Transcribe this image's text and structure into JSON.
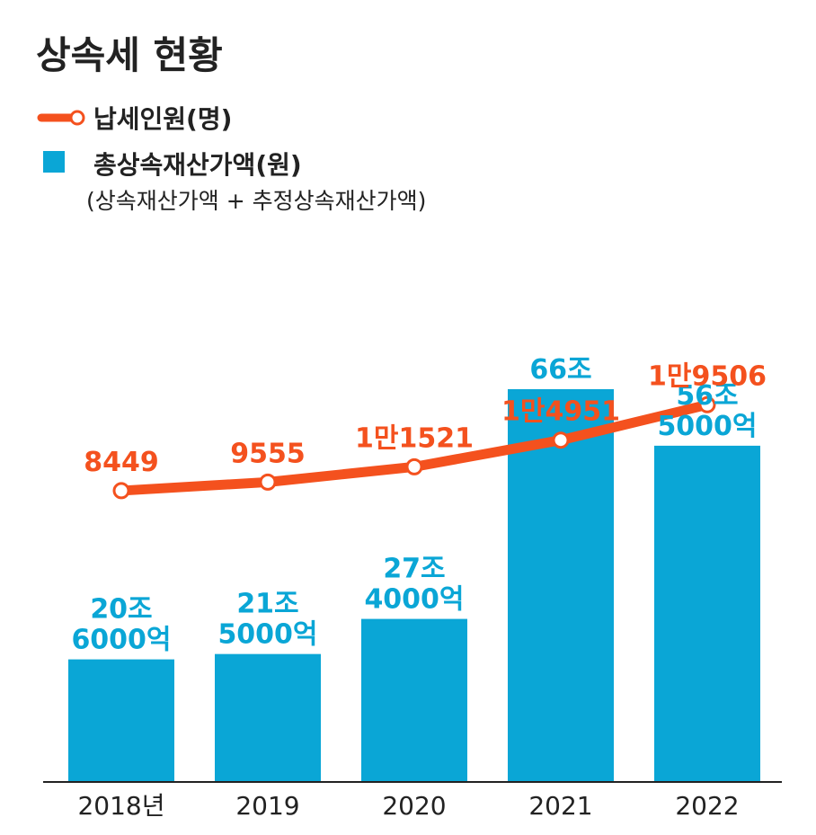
{
  "chart_data": {
    "type": "bar+line",
    "title": "상속세 현황",
    "legend": {
      "line_label": "납세인원(명)",
      "bar_label": "총상속재산가액(원)",
      "bar_sublabel": "(상속재산가액 + 추정상속재산가액)"
    },
    "categories": [
      "2018년",
      "2019",
      "2020",
      "2021",
      "2022"
    ],
    "series": [
      {
        "name": "총상속재산가액(원)",
        "kind": "bar",
        "unit": "조원",
        "values": [
          20.6,
          21.5,
          27.4,
          66.0,
          56.5
        ],
        "labels": [
          [
            "20조",
            "6000억"
          ],
          [
            "21조",
            "5000억"
          ],
          [
            "27조",
            "4000억"
          ],
          [
            "66조"
          ],
          [
            "56조",
            "5000억"
          ]
        ]
      },
      {
        "name": "납세인원(명)",
        "kind": "line",
        "unit": "명",
        "values": [
          8449,
          9555,
          11521,
          14951,
          19506
        ],
        "labels": [
          "8449",
          "9555",
          "1만1521",
          "1만4951",
          "1만9506"
        ]
      }
    ],
    "colors": {
      "bar": "#0aa6d6",
      "line": "#f4511e",
      "text": "#222222",
      "baseline": "#222222"
    },
    "legend_position": "top-left",
    "grid": false
  }
}
